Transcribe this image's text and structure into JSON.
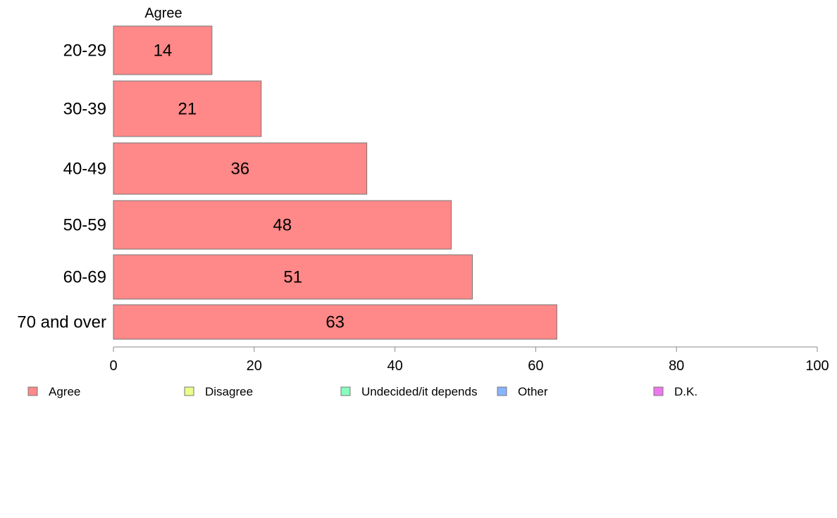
{
  "chart_data": {
    "type": "bar",
    "orientation": "horizontal",
    "column_header": "Agree",
    "categories": [
      "20-29",
      "30-39",
      "40-49",
      "50-59",
      "60-69",
      "70 and over"
    ],
    "series": [
      {
        "name": "Agree",
        "values": [
          14,
          21,
          36,
          48,
          51,
          63
        ]
      }
    ],
    "xlim": [
      0,
      100
    ],
    "xticks": [
      0,
      20,
      40,
      60,
      80,
      100
    ],
    "grid": false,
    "legend_position": "bottom",
    "legend": [
      "Agree",
      "Disagree",
      "Undecided/it depends",
      "Other",
      "D.K."
    ]
  },
  "colors": {
    "Agree": "#ff8888",
    "Disagree": "#e8ff88",
    "Undecided/it depends": "#88ffbb",
    "Other": "#88b4ff",
    "D.K.": "#ee77ee",
    "bar_border": "#777777",
    "axis": "#888888"
  }
}
